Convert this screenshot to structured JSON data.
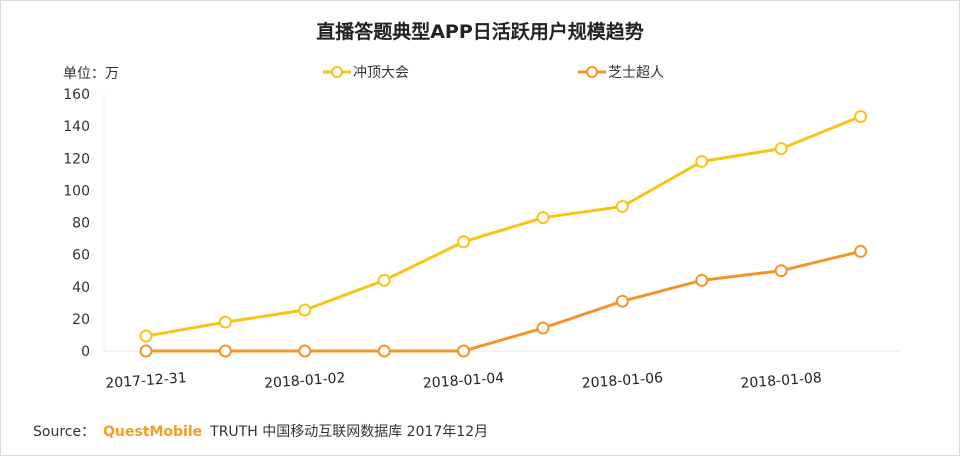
{
  "chart_data": {
    "type": "line",
    "title": "直播答题典型APP日活跃用户规模趋势",
    "unit_label": "单位：万",
    "x": [
      "2017-12-31",
      "2018-01-01",
      "2018-01-02",
      "2018-01-03",
      "2018-01-04",
      "2018-01-05",
      "2018-01-06",
      "2018-01-07",
      "2018-01-08",
      "2018-01-09"
    ],
    "x_tick_labels": [
      "2017-12-31",
      "2018-01-02",
      "2018-01-04",
      "2018-01-06",
      "2018-01-08"
    ],
    "y_ticks": [
      "0",
      "20",
      "40",
      "60",
      "80",
      "100",
      "120",
      "140",
      "160"
    ],
    "ylim": [
      0,
      160
    ],
    "grid": false,
    "legend_position": "top",
    "series": [
      {
        "name": "冲顶大会",
        "color": "#f5c518",
        "values": [
          9.3,
          18,
          25.5,
          44,
          68,
          83,
          90,
          118,
          126,
          146
        ]
      },
      {
        "name": "芝士超人",
        "color": "#f0962a",
        "values": [
          0,
          0,
          0,
          0,
          0,
          14.3,
          31,
          44,
          50,
          62
        ]
      }
    ]
  },
  "source": {
    "prefix": "Source：",
    "brand": "QuestMobile",
    "text": "TRUTH 中国移动互联网数据库 2017年12月"
  }
}
